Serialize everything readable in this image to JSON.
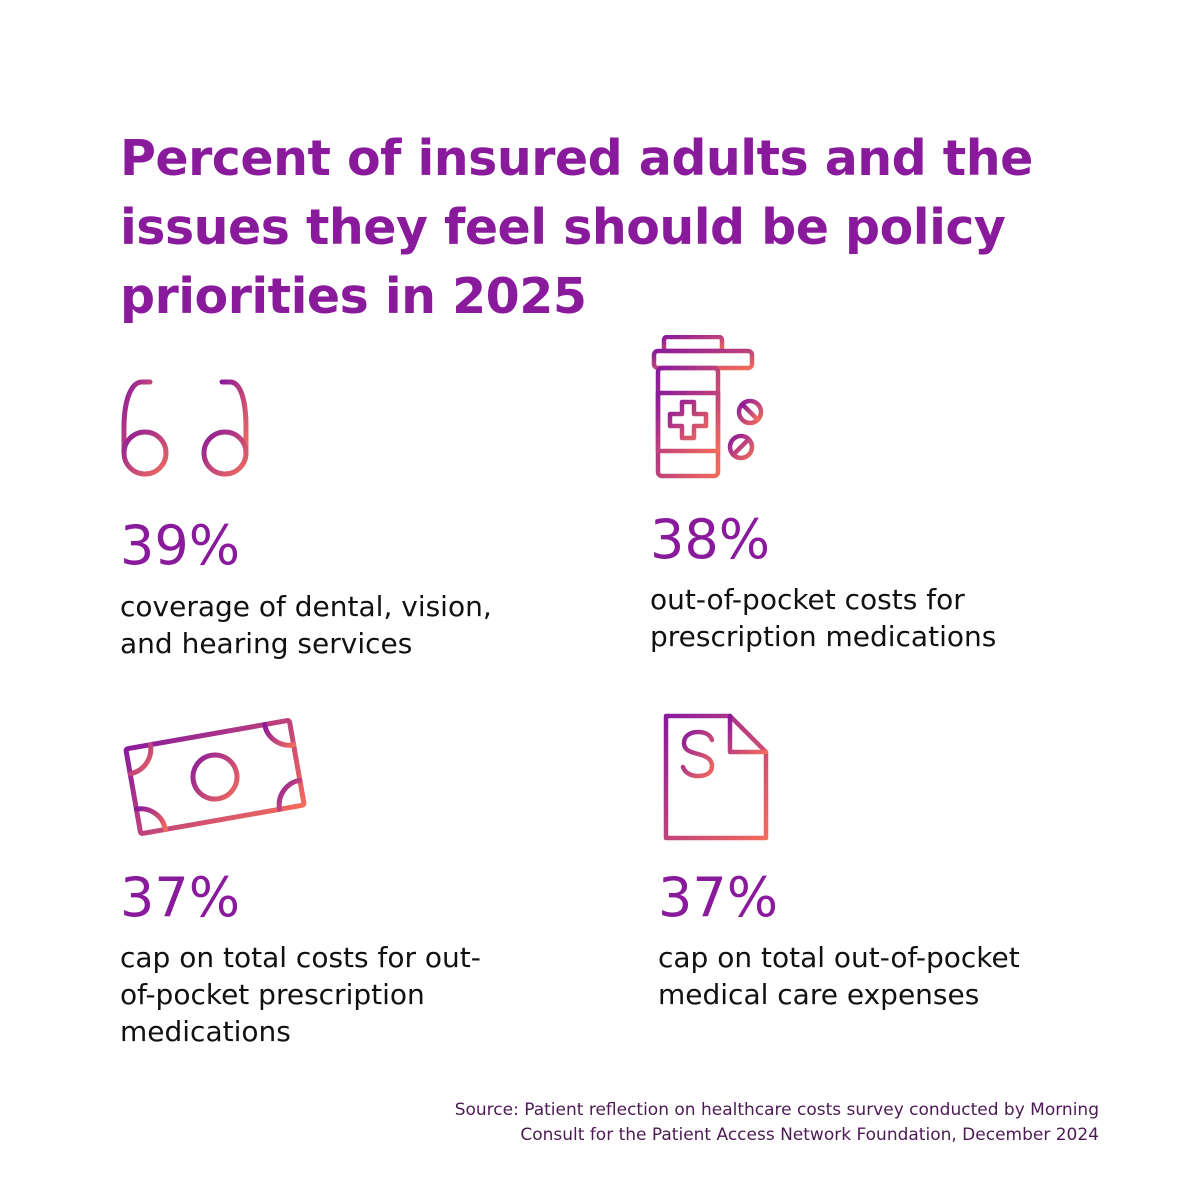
{
  "colors": {
    "accent": "#8a1a9c",
    "gradient_start": "#8a1a9c",
    "gradient_end": "#f26b5b",
    "body_text": "#111111",
    "source_text": "#4d1a55"
  },
  "title": {
    "lines": [
      "Percent of insured adults and the",
      "issues they feel should be policy",
      "priorities in 2025"
    ]
  },
  "stats": [
    {
      "icon": "eyeglasses-icon",
      "percent": "39%",
      "lines": [
        "coverage of dental, vision,",
        "and hearing services"
      ]
    },
    {
      "icon": "pill-bottle-icon",
      "percent": "38%",
      "lines": [
        "out-of-pocket costs for",
        "prescription medications"
      ]
    },
    {
      "icon": "banknote-icon",
      "percent": "37%",
      "lines": [
        "cap on total costs for out-",
        "of-pocket prescription",
        "medications"
      ]
    },
    {
      "icon": "invoice-dollar-icon",
      "percent": "37%",
      "lines": [
        "cap on total out-of-pocket",
        "medical care expenses"
      ]
    }
  ],
  "source": {
    "lines": [
      "Source: Patient reflection on healthcare costs survey conducted by Morning",
      "Consult for the Patient Access Network Foundation, December 2024"
    ]
  }
}
